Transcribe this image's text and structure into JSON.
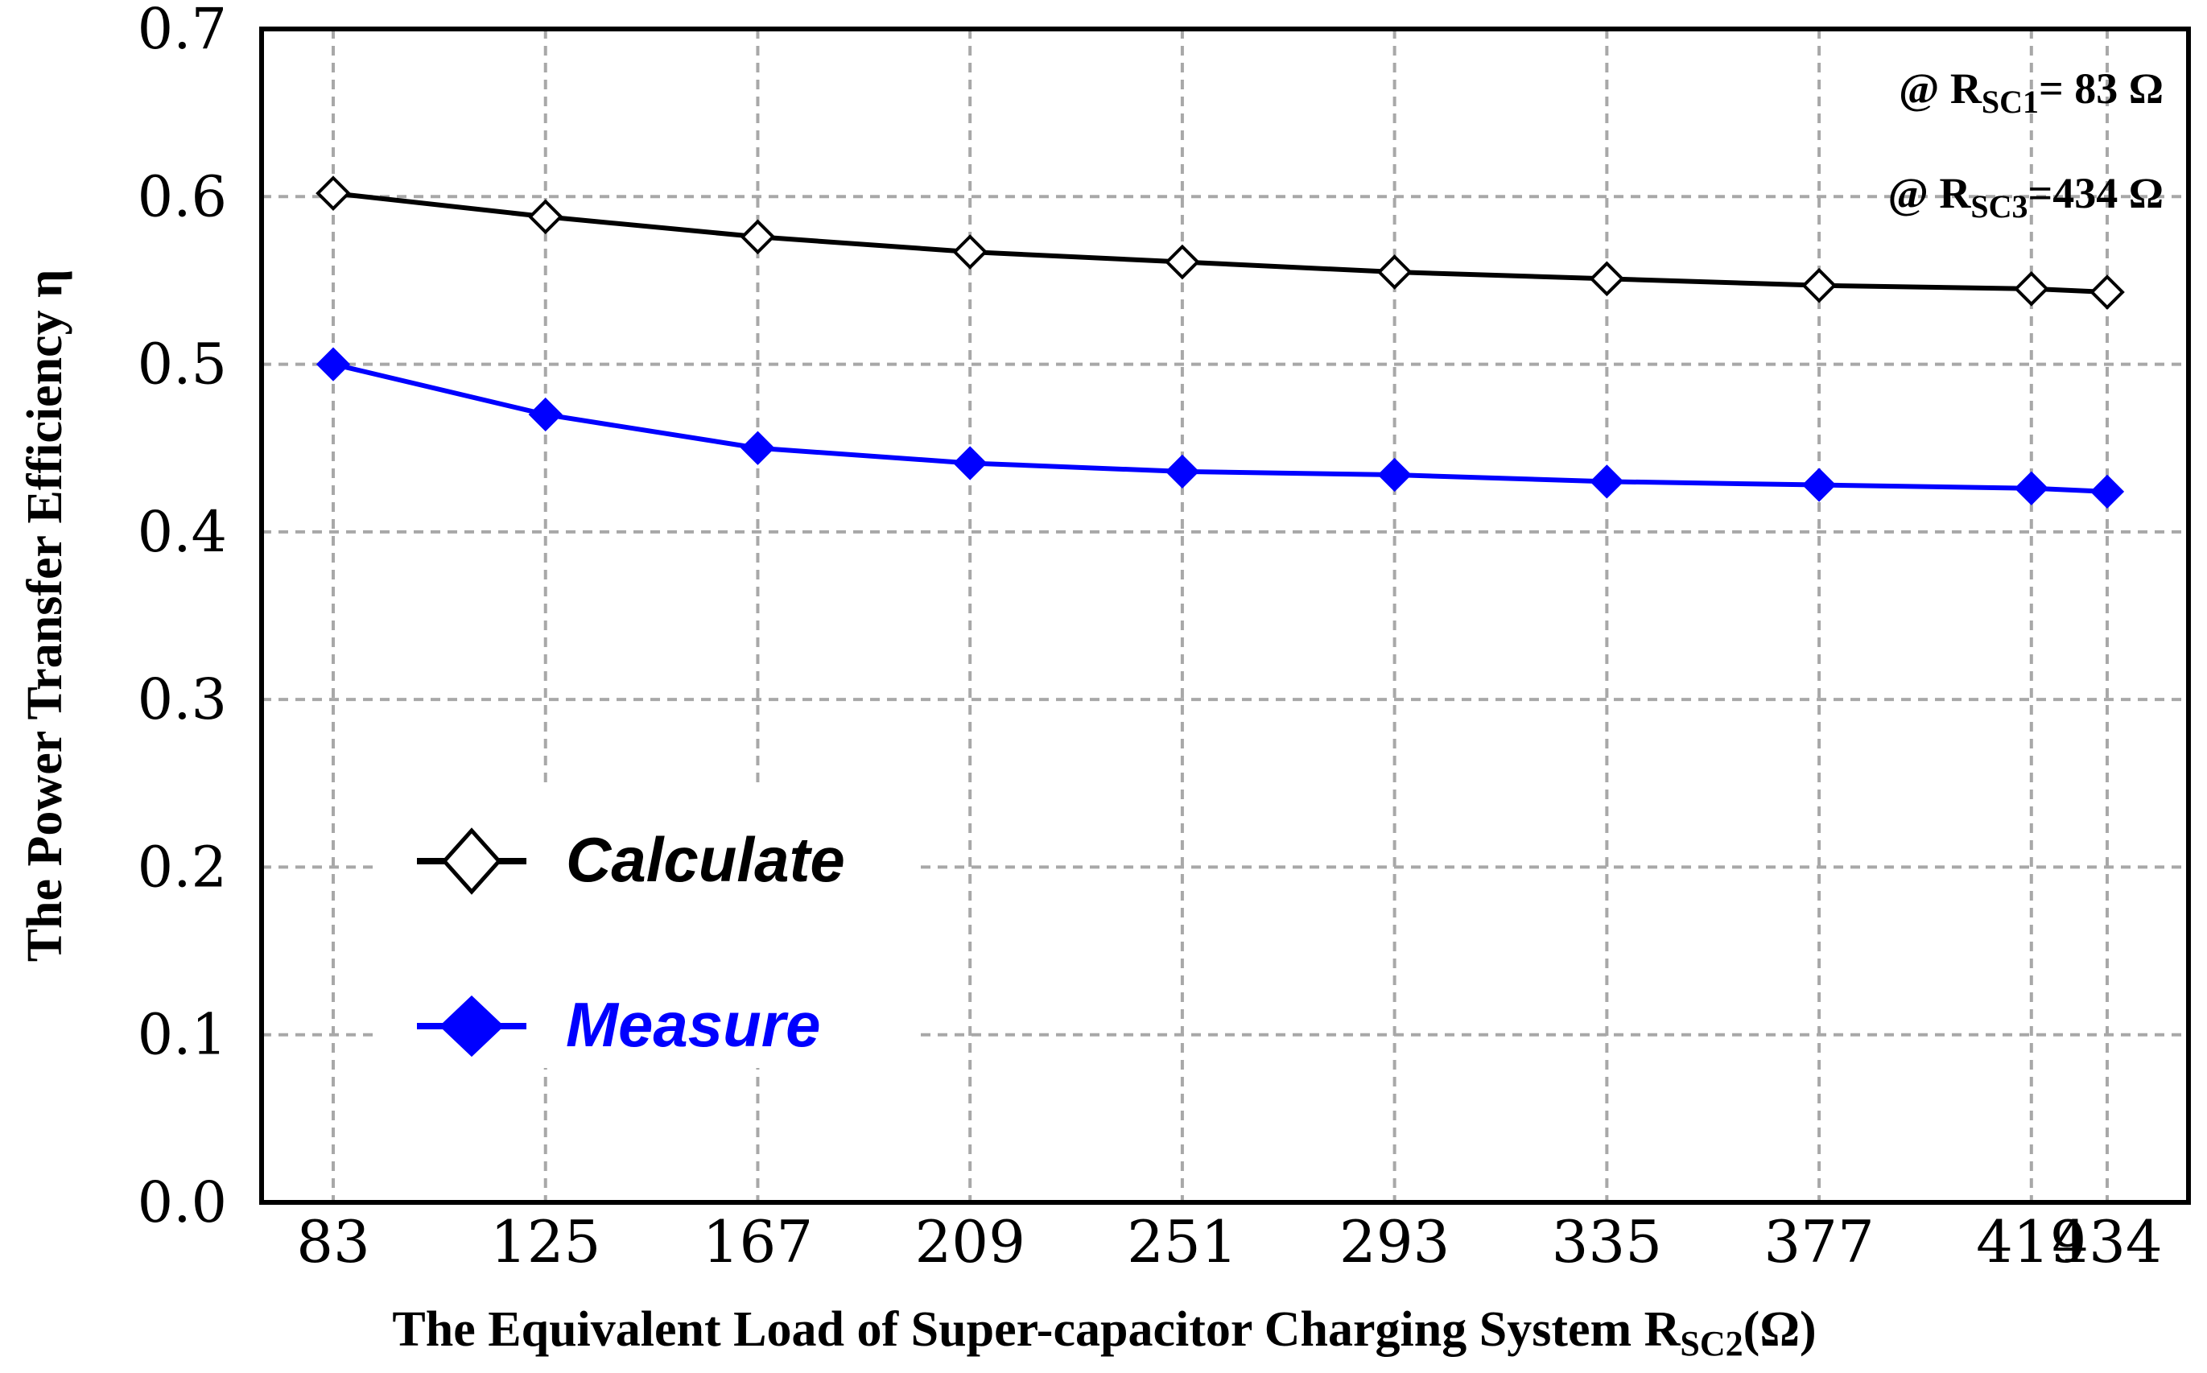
{
  "chart_data": {
    "type": "line",
    "categories": [
      "83",
      "125",
      "167",
      "209",
      "251",
      "293",
      "335",
      "377",
      "419",
      "434"
    ],
    "x": [
      83,
      125,
      167,
      209,
      251,
      293,
      335,
      377,
      419,
      434
    ],
    "series": [
      {
        "name": "Calculate",
        "color": "#000000",
        "marker": "open-diamond",
        "values": [
          0.602,
          0.588,
          0.576,
          0.567,
          0.561,
          0.555,
          0.551,
          0.547,
          0.545,
          0.543
        ]
      },
      {
        "name": "Measure",
        "color": "#0000ff",
        "marker": "filled-diamond",
        "values": [
          0.5,
          0.47,
          0.45,
          0.441,
          0.436,
          0.434,
          0.43,
          0.428,
          0.426,
          0.424
        ]
      }
    ],
    "ylim": [
      0.0,
      0.7
    ],
    "yticks": [
      "0.0",
      "0.1",
      "0.2",
      "0.3",
      "0.4",
      "0.5",
      "0.6",
      "0.7"
    ],
    "ylabel": "The Power Transfer Efficiency η",
    "xlabel": {
      "main": "The Equivalent Load of Super-capacitor Charging System R",
      "sub": "SC2",
      "unit": "(Ω)"
    },
    "annotations": [
      {
        "prefix": "@ R",
        "sub": "SC1",
        "suffix": "= 83  Ω"
      },
      {
        "prefix": "@ R",
        "sub": "SC3",
        "suffix": "=434 Ω"
      }
    ],
    "grid": true,
    "legend_position": "lower-left"
  }
}
